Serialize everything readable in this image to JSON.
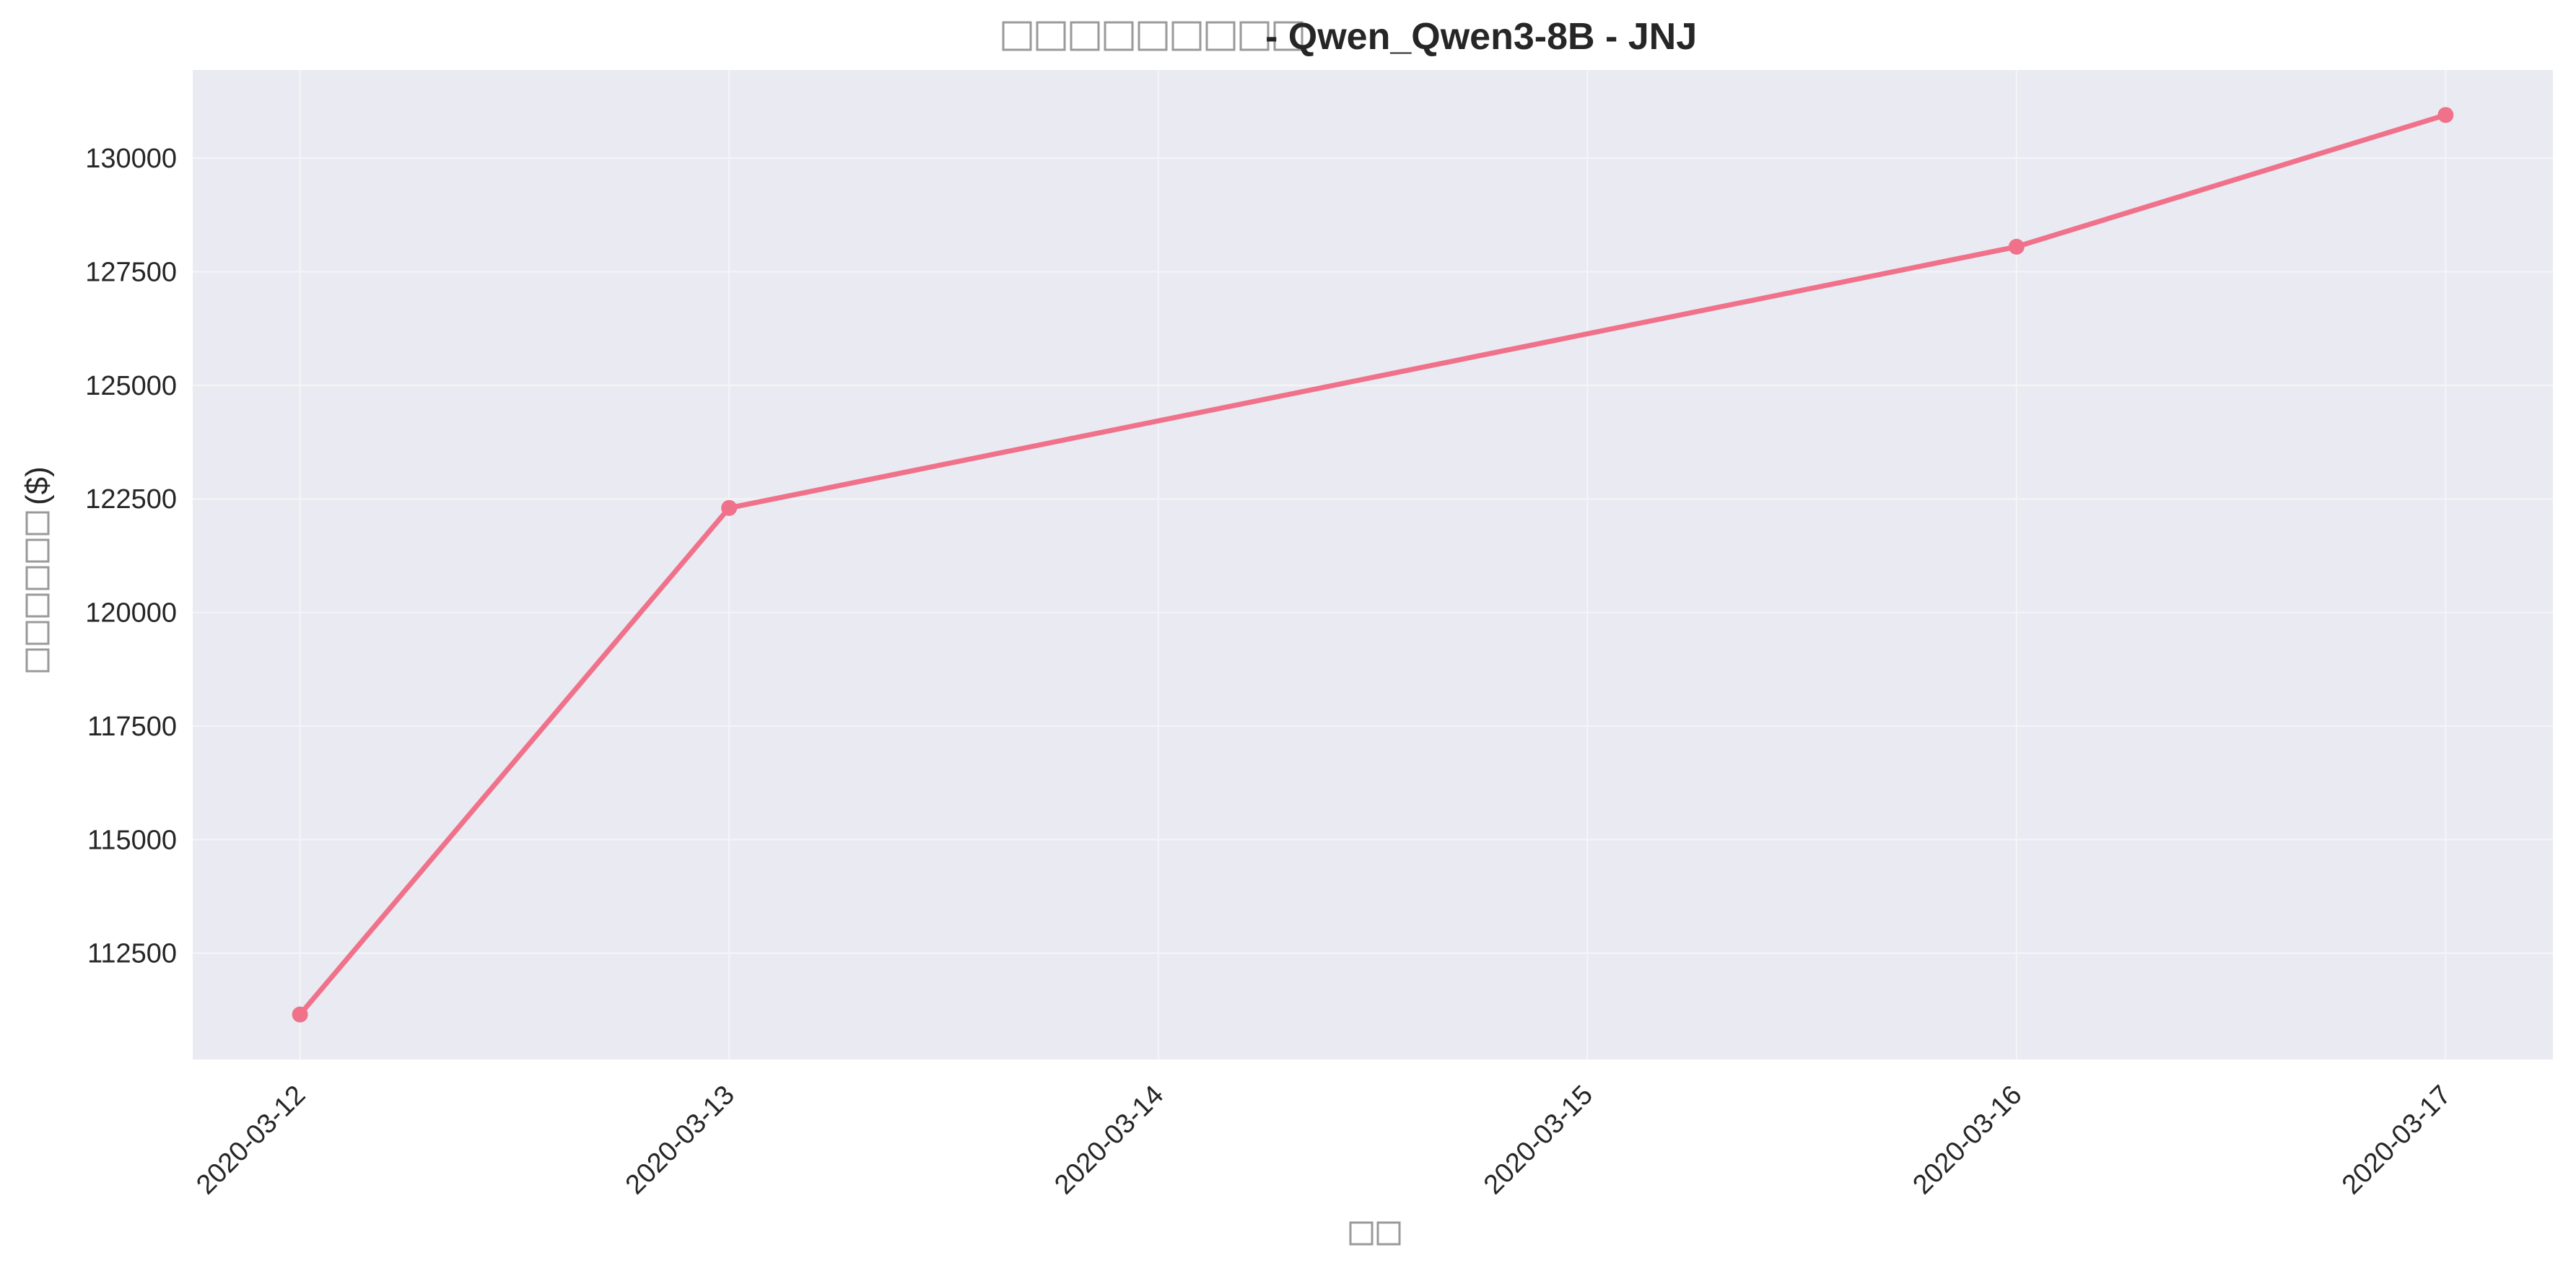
{
  "chart_data": {
    "type": "line",
    "title": "- Qwen_Qwen3-8B - JNJ",
    "title_placeholder_glyphs": 9,
    "xlabel": "",
    "xlabel_placeholder_glyphs": 2,
    "ylabel": "($)",
    "ylabel_placeholder_glyphs": 6,
    "x": [
      "2020-03-12",
      "2020-03-13",
      "2020-03-16",
      "2020-03-17"
    ],
    "x_ticks": [
      "2020-03-12",
      "2020-03-13",
      "2020-03-14",
      "2020-03-15",
      "2020-03-16",
      "2020-03-17"
    ],
    "xlim": [
      "2020-03-11 18:00",
      "2020-03-17 06:00"
    ],
    "series": [
      {
        "values": [
          111150,
          122300,
          128050,
          130950
        ],
        "color": "#f0718a"
      }
    ],
    "y_ticks": [
      112500,
      115000,
      117500,
      120000,
      122500,
      125000,
      127500,
      130000
    ],
    "ylim": [
      110160,
      131940
    ],
    "grid": true,
    "background": "#eaeaf2",
    "grid_color": "#f5f5f8",
    "legend": "none"
  }
}
